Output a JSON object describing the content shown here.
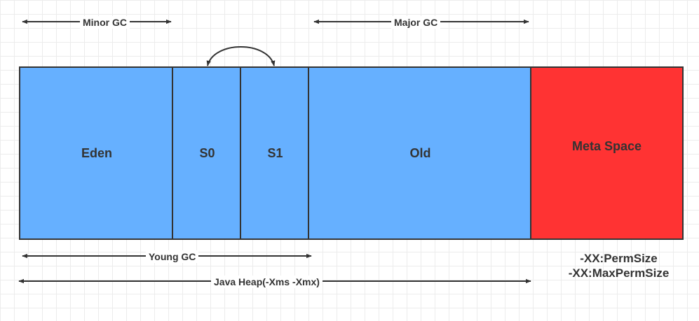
{
  "regions": {
    "eden": "Eden",
    "s0": "S0",
    "s1": "S1",
    "old": "Old",
    "meta": "Meta Space"
  },
  "labels": {
    "minor_gc": "Minor GC",
    "major_gc": "Major GC",
    "young_gc": "Young GC",
    "java_heap": "Java Heap(-Xms -Xmx)"
  },
  "flags": [
    "-XX:PermSize",
    "-XX:MaxPermSize"
  ],
  "colors": {
    "heap": "#66b0ff",
    "meta": "#ff3333",
    "stroke": "#333333"
  }
}
